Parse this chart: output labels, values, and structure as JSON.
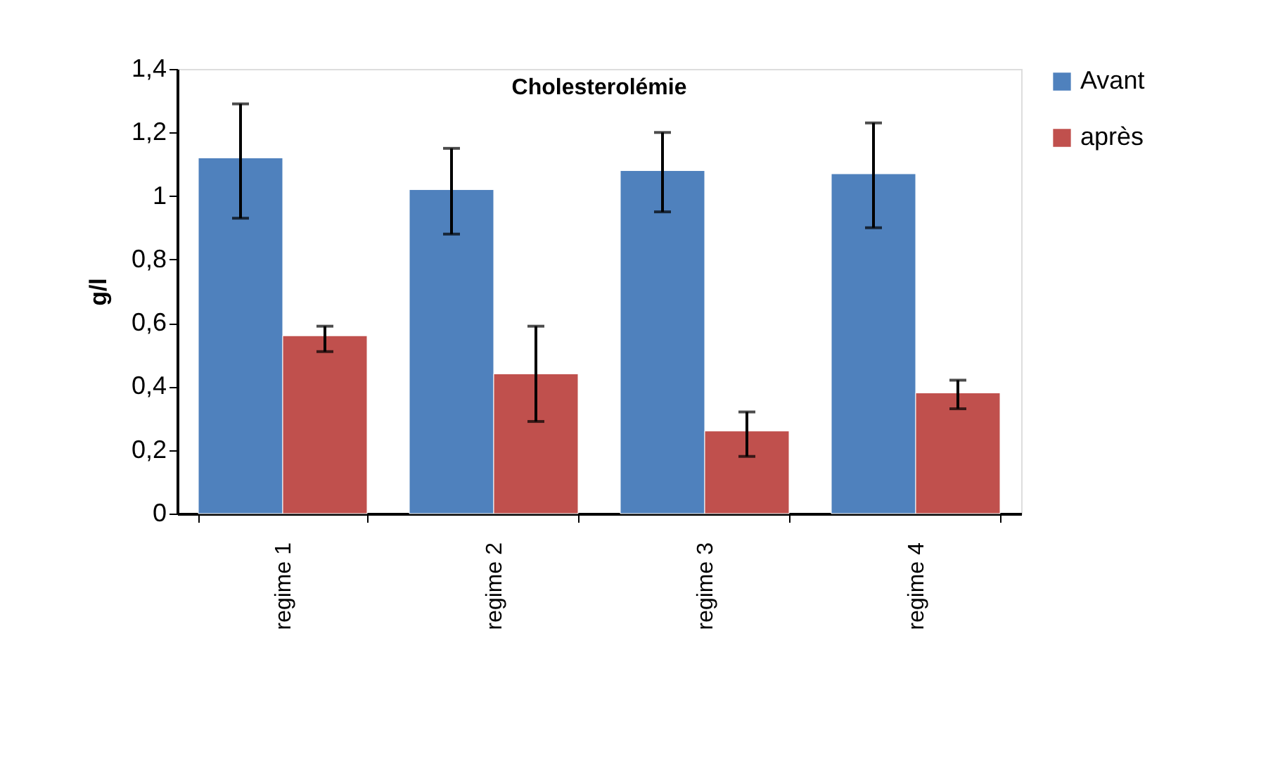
{
  "chart_data": {
    "type": "bar",
    "title": "Cholesterolémie",
    "ylabel": "g/l",
    "categories": [
      "regime 1",
      "regime 2",
      "regime 3",
      "regime 4"
    ],
    "series": [
      {
        "name": "Avant",
        "color": "#4f81bd",
        "values": [
          1.12,
          1.02,
          1.08,
          1.07
        ],
        "errors": [
          [
            0.93,
            1.29
          ],
          [
            0.88,
            1.15
          ],
          [
            0.95,
            1.2
          ],
          [
            0.9,
            1.23
          ]
        ]
      },
      {
        "name": "après",
        "color": "#c0504d",
        "values": [
          0.56,
          0.44,
          0.26,
          0.38
        ],
        "errors": [
          [
            0.51,
            0.59
          ],
          [
            0.29,
            0.59
          ],
          [
            0.18,
            0.32
          ],
          [
            0.33,
            0.42
          ]
        ]
      }
    ],
    "ylim": [
      0,
      1.4
    ],
    "yticks": [
      0,
      {
        "value": 0.2,
        "label": "0,2"
      },
      {
        "value": 0.4,
        "label": "0,4"
      },
      {
        "value": 0.6,
        "label": "0,6"
      },
      {
        "value": 0.8,
        "label": "0,8"
      },
      1,
      {
        "value": 1.2,
        "label": "1,2"
      },
      {
        "value": 1.4,
        "label": "1,4"
      }
    ],
    "grid": false,
    "legend": "right"
  }
}
